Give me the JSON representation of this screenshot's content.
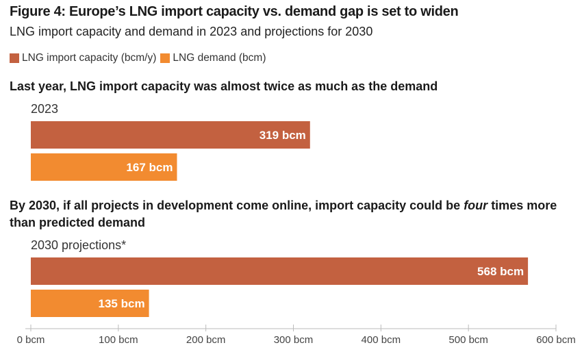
{
  "title": "Figure 4: Europe’s LNG import capacity vs. demand gap is set to widen",
  "subtitle": "LNG import capacity and demand in 2023 and projections for 2030",
  "legend": [
    {
      "label": "LNG import capacity (bcm/y)",
      "color": "#c36140"
    },
    {
      "label": "LNG demand (bcm)",
      "color": "#f28b30"
    }
  ],
  "sections": [
    {
      "heading_parts": [
        {
          "text": "Last year, LNG import capacity was almost twice as much as the demand",
          "italic": false
        }
      ],
      "group_label": "2023"
    },
    {
      "heading_parts": [
        {
          "text": "By 2030, if all projects in development come online, import capacity could be ",
          "italic": false
        },
        {
          "text": "four",
          "italic": true
        },
        {
          "text": " times more than predicted demand",
          "italic": false
        }
      ],
      "group_label": "2030 projections*"
    }
  ],
  "chart_data": {
    "type": "bar",
    "orientation": "horizontal",
    "categories": [
      "2023",
      "2030 projections*"
    ],
    "series": [
      {
        "name": "LNG import capacity (bcm/y)",
        "values": [
          319,
          568
        ],
        "labels": [
          "319 bcm",
          "568 bcm"
        ],
        "color": "#c36140"
      },
      {
        "name": "LNG demand (bcm)",
        "values": [
          167,
          135
        ],
        "labels": [
          "167 bcm",
          "135 bcm"
        ],
        "color": "#f28b30"
      }
    ],
    "xlim": [
      0,
      600
    ],
    "xticks": [
      0,
      100,
      200,
      300,
      400,
      500,
      600
    ],
    "xtick_labels": [
      "0 bcm",
      "100 bcm",
      "200 bcm",
      "300 bcm",
      "400 bcm",
      "500 bcm",
      "600 bcm"
    ],
    "grid": false,
    "legend_position": "top-left"
  }
}
